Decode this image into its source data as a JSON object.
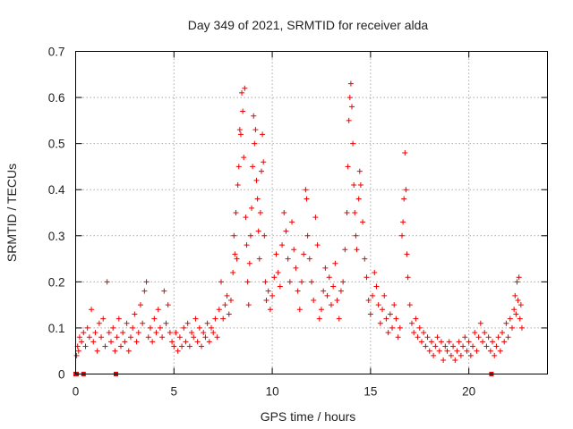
{
  "chart_data": {
    "type": "scatter",
    "title": "Day 349 of 2021, SRMTID for receiver alda",
    "xlabel": "GPS time / hours",
    "ylabel": "SRMTID / TECUs",
    "xlim": [
      0,
      24
    ],
    "ylim": [
      0,
      0.7
    ],
    "xticks": [
      0,
      5,
      10,
      15,
      20
    ],
    "yticks": [
      0,
      0.1,
      0.2,
      0.3,
      0.4,
      0.5,
      0.6,
      0.7
    ],
    "grid": true,
    "marker": "+",
    "color": "#ee0000",
    "series": [
      {
        "name": "SRMTID alda",
        "points": [
          [
            0.05,
            0.04
          ],
          [
            0.1,
            0.06
          ],
          [
            0.15,
            0.05
          ],
          [
            0.2,
            0.08
          ],
          [
            0.3,
            0.07
          ],
          [
            0.4,
            0.09
          ],
          [
            0.5,
            0.06
          ],
          [
            0.6,
            0.1
          ],
          [
            0.7,
            0.08
          ],
          [
            0.8,
            0.14
          ],
          [
            0.9,
            0.07
          ],
          [
            1.0,
            0.09
          ],
          [
            1.1,
            0.05
          ],
          [
            1.2,
            0.11
          ],
          [
            1.3,
            0.08
          ],
          [
            1.4,
            0.12
          ],
          [
            1.5,
            0.06
          ],
          [
            1.6,
            0.2
          ],
          [
            1.7,
            0.09
          ],
          [
            1.8,
            0.07
          ],
          [
            1.9,
            0.1
          ],
          [
            2.0,
            0.05
          ],
          [
            2.1,
            0.08
          ],
          [
            2.2,
            0.12
          ],
          [
            2.3,
            0.06
          ],
          [
            2.4,
            0.09
          ],
          [
            2.5,
            0.07
          ],
          [
            2.6,
            0.11
          ],
          [
            2.7,
            0.05
          ],
          [
            2.8,
            0.08
          ],
          [
            2.9,
            0.1
          ],
          [
            3.0,
            0.13
          ],
          [
            3.1,
            0.07
          ],
          [
            3.2,
            0.09
          ],
          [
            3.3,
            0.15
          ],
          [
            3.4,
            0.11
          ],
          [
            3.5,
            0.18
          ],
          [
            3.6,
            0.2
          ],
          [
            3.7,
            0.08
          ],
          [
            3.8,
            0.1
          ],
          [
            3.9,
            0.07
          ],
          [
            4.0,
            0.12
          ],
          [
            4.1,
            0.09
          ],
          [
            4.2,
            0.14
          ],
          [
            4.3,
            0.1
          ],
          [
            4.4,
            0.08
          ],
          [
            4.5,
            0.18
          ],
          [
            4.6,
            0.11
          ],
          [
            4.7,
            0.15
          ],
          [
            4.8,
            0.09
          ],
          [
            4.9,
            0.07
          ],
          [
            5.0,
            0.06
          ],
          [
            5.1,
            0.09
          ],
          [
            5.2,
            0.05
          ],
          [
            5.3,
            0.08
          ],
          [
            5.4,
            0.06
          ],
          [
            5.5,
            0.1
          ],
          [
            5.6,
            0.07
          ],
          [
            5.7,
            0.11
          ],
          [
            5.8,
            0.06
          ],
          [
            5.9,
            0.09
          ],
          [
            6.0,
            0.08
          ],
          [
            6.1,
            0.12
          ],
          [
            6.2,
            0.07
          ],
          [
            6.3,
            0.1
          ],
          [
            6.4,
            0.06
          ],
          [
            6.5,
            0.09
          ],
          [
            6.6,
            0.08
          ],
          [
            6.7,
            0.11
          ],
          [
            6.8,
            0.07
          ],
          [
            6.9,
            0.1
          ],
          [
            7.0,
            0.09
          ],
          [
            7.1,
            0.12
          ],
          [
            7.2,
            0.08
          ],
          [
            7.3,
            0.14
          ],
          [
            7.4,
            0.2
          ],
          [
            7.5,
            0.12
          ],
          [
            7.6,
            0.15
          ],
          [
            7.7,
            0.17
          ],
          [
            7.8,
            0.13
          ],
          [
            7.9,
            0.16
          ],
          [
            8.0,
            0.22
          ],
          [
            8.05,
            0.3
          ],
          [
            8.1,
            0.26
          ],
          [
            8.15,
            0.35
          ],
          [
            8.2,
            0.25
          ],
          [
            8.25,
            0.41
          ],
          [
            8.3,
            0.45
          ],
          [
            8.35,
            0.53
          ],
          [
            8.4,
            0.52
          ],
          [
            8.45,
            0.61
          ],
          [
            8.5,
            0.57
          ],
          [
            8.55,
            0.47
          ],
          [
            8.6,
            0.62
          ],
          [
            8.65,
            0.34
          ],
          [
            8.7,
            0.28
          ],
          [
            8.75,
            0.2
          ],
          [
            8.8,
            0.15
          ],
          [
            8.85,
            0.24
          ],
          [
            8.9,
            0.3
          ],
          [
            8.95,
            0.36
          ],
          [
            9.0,
            0.45
          ],
          [
            9.05,
            0.56
          ],
          [
            9.1,
            0.5
          ],
          [
            9.15,
            0.53
          ],
          [
            9.2,
            0.42
          ],
          [
            9.25,
            0.38
          ],
          [
            9.3,
            0.31
          ],
          [
            9.35,
            0.25
          ],
          [
            9.4,
            0.35
          ],
          [
            9.45,
            0.44
          ],
          [
            9.5,
            0.52
          ],
          [
            9.55,
            0.46
          ],
          [
            9.6,
            0.3
          ],
          [
            9.65,
            0.2
          ],
          [
            9.7,
            0.16
          ],
          [
            9.8,
            0.18
          ],
          [
            9.9,
            0.14
          ],
          [
            10.0,
            0.17
          ],
          [
            10.1,
            0.21
          ],
          [
            10.2,
            0.26
          ],
          [
            10.3,
            0.22
          ],
          [
            10.4,
            0.19
          ],
          [
            10.5,
            0.28
          ],
          [
            10.6,
            0.35
          ],
          [
            10.7,
            0.31
          ],
          [
            10.8,
            0.25
          ],
          [
            10.9,
            0.2
          ],
          [
            11.0,
            0.33
          ],
          [
            11.1,
            0.27
          ],
          [
            11.2,
            0.23
          ],
          [
            11.3,
            0.18
          ],
          [
            11.4,
            0.14
          ],
          [
            11.5,
            0.2
          ],
          [
            11.6,
            0.26
          ],
          [
            11.7,
            0.4
          ],
          [
            11.75,
            0.38
          ],
          [
            11.8,
            0.3
          ],
          [
            11.9,
            0.25
          ],
          [
            12.0,
            0.2
          ],
          [
            12.1,
            0.16
          ],
          [
            12.2,
            0.34
          ],
          [
            12.3,
            0.28
          ],
          [
            12.4,
            0.12
          ],
          [
            12.5,
            0.14
          ],
          [
            12.6,
            0.18
          ],
          [
            12.7,
            0.23
          ],
          [
            12.8,
            0.17
          ],
          [
            12.9,
            0.21
          ],
          [
            13.0,
            0.15
          ],
          [
            13.1,
            0.19
          ],
          [
            13.2,
            0.24
          ],
          [
            13.3,
            0.16
          ],
          [
            13.4,
            0.12
          ],
          [
            13.5,
            0.18
          ],
          [
            13.6,
            0.2
          ],
          [
            13.7,
            0.27
          ],
          [
            13.8,
            0.35
          ],
          [
            13.85,
            0.45
          ],
          [
            13.9,
            0.55
          ],
          [
            13.95,
            0.6
          ],
          [
            14.0,
            0.63
          ],
          [
            14.05,
            0.58
          ],
          [
            14.1,
            0.5
          ],
          [
            14.15,
            0.41
          ],
          [
            14.2,
            0.35
          ],
          [
            14.25,
            0.3
          ],
          [
            14.3,
            0.27
          ],
          [
            14.4,
            0.38
          ],
          [
            14.45,
            0.44
          ],
          [
            14.5,
            0.41
          ],
          [
            14.6,
            0.33
          ],
          [
            14.7,
            0.25
          ],
          [
            14.8,
            0.21
          ],
          [
            14.9,
            0.16
          ],
          [
            15.0,
            0.13
          ],
          [
            15.1,
            0.17
          ],
          [
            15.2,
            0.22
          ],
          [
            15.3,
            0.19
          ],
          [
            15.4,
            0.15
          ],
          [
            15.5,
            0.11
          ],
          [
            15.6,
            0.14
          ],
          [
            15.7,
            0.17
          ],
          [
            15.8,
            0.12
          ],
          [
            15.9,
            0.09
          ],
          [
            16.0,
            0.13
          ],
          [
            16.1,
            0.1
          ],
          [
            16.2,
            0.15
          ],
          [
            16.3,
            0.12
          ],
          [
            16.4,
            0.08
          ],
          [
            16.5,
            0.1
          ],
          [
            16.6,
            0.3
          ],
          [
            16.65,
            0.33
          ],
          [
            16.7,
            0.38
          ],
          [
            16.75,
            0.48
          ],
          [
            16.8,
            0.4
          ],
          [
            16.85,
            0.26
          ],
          [
            16.9,
            0.21
          ],
          [
            17.0,
            0.15
          ],
          [
            17.1,
            0.11
          ],
          [
            17.2,
            0.09
          ],
          [
            17.3,
            0.12
          ],
          [
            17.4,
            0.08
          ],
          [
            17.5,
            0.1
          ],
          [
            17.6,
            0.07
          ],
          [
            17.7,
            0.09
          ],
          [
            17.8,
            0.06
          ],
          [
            17.9,
            0.08
          ],
          [
            18.0,
            0.05
          ],
          [
            18.1,
            0.07
          ],
          [
            18.2,
            0.04
          ],
          [
            18.3,
            0.06
          ],
          [
            18.4,
            0.08
          ],
          [
            18.5,
            0.05
          ],
          [
            18.6,
            0.07
          ],
          [
            18.7,
            0.03
          ],
          [
            18.8,
            0.06
          ],
          [
            18.9,
            0.05
          ],
          [
            19.0,
            0.07
          ],
          [
            19.1,
            0.04
          ],
          [
            19.2,
            0.06
          ],
          [
            19.3,
            0.03
          ],
          [
            19.4,
            0.05
          ],
          [
            19.5,
            0.07
          ],
          [
            19.6,
            0.04
          ],
          [
            19.7,
            0.06
          ],
          [
            19.8,
            0.08
          ],
          [
            19.9,
            0.05
          ],
          [
            20.0,
            0.07
          ],
          [
            20.1,
            0.04
          ],
          [
            20.2,
            0.06
          ],
          [
            20.3,
            0.09
          ],
          [
            20.4,
            0.05
          ],
          [
            20.5,
            0.08
          ],
          [
            20.6,
            0.11
          ],
          [
            20.7,
            0.07
          ],
          [
            20.8,
            0.09
          ],
          [
            20.9,
            0.06
          ],
          [
            21.0,
            0.08
          ],
          [
            21.1,
            0.05
          ],
          [
            21.2,
            0.07
          ],
          [
            21.3,
            0.04
          ],
          [
            21.4,
            0.06
          ],
          [
            21.5,
            0.08
          ],
          [
            21.6,
            0.05
          ],
          [
            21.7,
            0.09
          ],
          [
            21.8,
            0.07
          ],
          [
            21.9,
            0.11
          ],
          [
            22.0,
            0.08
          ],
          [
            22.1,
            0.12
          ],
          [
            22.2,
            0.1
          ],
          [
            22.3,
            0.14
          ],
          [
            22.35,
            0.17
          ],
          [
            22.4,
            0.13
          ],
          [
            22.45,
            0.2
          ],
          [
            22.5,
            0.16
          ],
          [
            22.55,
            0.21
          ],
          [
            22.6,
            0.12
          ],
          [
            22.65,
            0.15
          ],
          [
            22.7,
            0.1
          ]
        ]
      }
    ],
    "zero_points": [
      0.0,
      0.05,
      0.4,
      2.05,
      21.15
    ]
  }
}
